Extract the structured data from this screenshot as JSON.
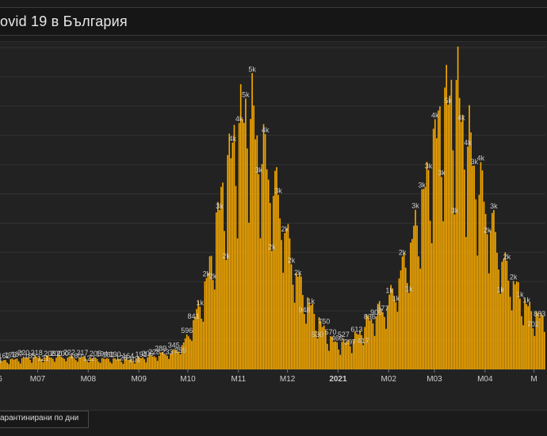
{
  "header": {
    "title": "ovid 19 в България"
  },
  "legend": {
    "label": "арантинирани по дни",
    "color": "#f5a800"
  },
  "colors": {
    "bar": "#f5a800",
    "background": "#222222",
    "grid": "#333333"
  },
  "chart_data": {
    "type": "bar",
    "title": "ovid 19 в България",
    "xlabel": "",
    "ylabel": "",
    "ylim": [
      0,
      5500
    ],
    "grid": true,
    "x_ticks": [
      {
        "label": "6",
        "day": 0,
        "bold": false
      },
      {
        "label": "M07",
        "day": 25,
        "bold": false
      },
      {
        "label": "M08",
        "day": 56,
        "bold": false
      },
      {
        "label": "M09",
        "day": 87,
        "bold": false
      },
      {
        "label": "M10",
        "day": 117,
        "bold": false
      },
      {
        "label": "M11",
        "day": 148,
        "bold": false
      },
      {
        "label": "M12",
        "day": 178,
        "bold": false
      },
      {
        "label": "2021",
        "day": 209,
        "bold": true
      },
      {
        "label": "M02",
        "day": 240,
        "bold": false
      },
      {
        "label": "M03",
        "day": 268,
        "bold": false
      },
      {
        "label": "M04",
        "day": 299,
        "bold": false
      },
      {
        "label": "M",
        "day": 329,
        "bold": false
      }
    ],
    "series": [
      {
        "values": []
      }
    ]
  }
}
